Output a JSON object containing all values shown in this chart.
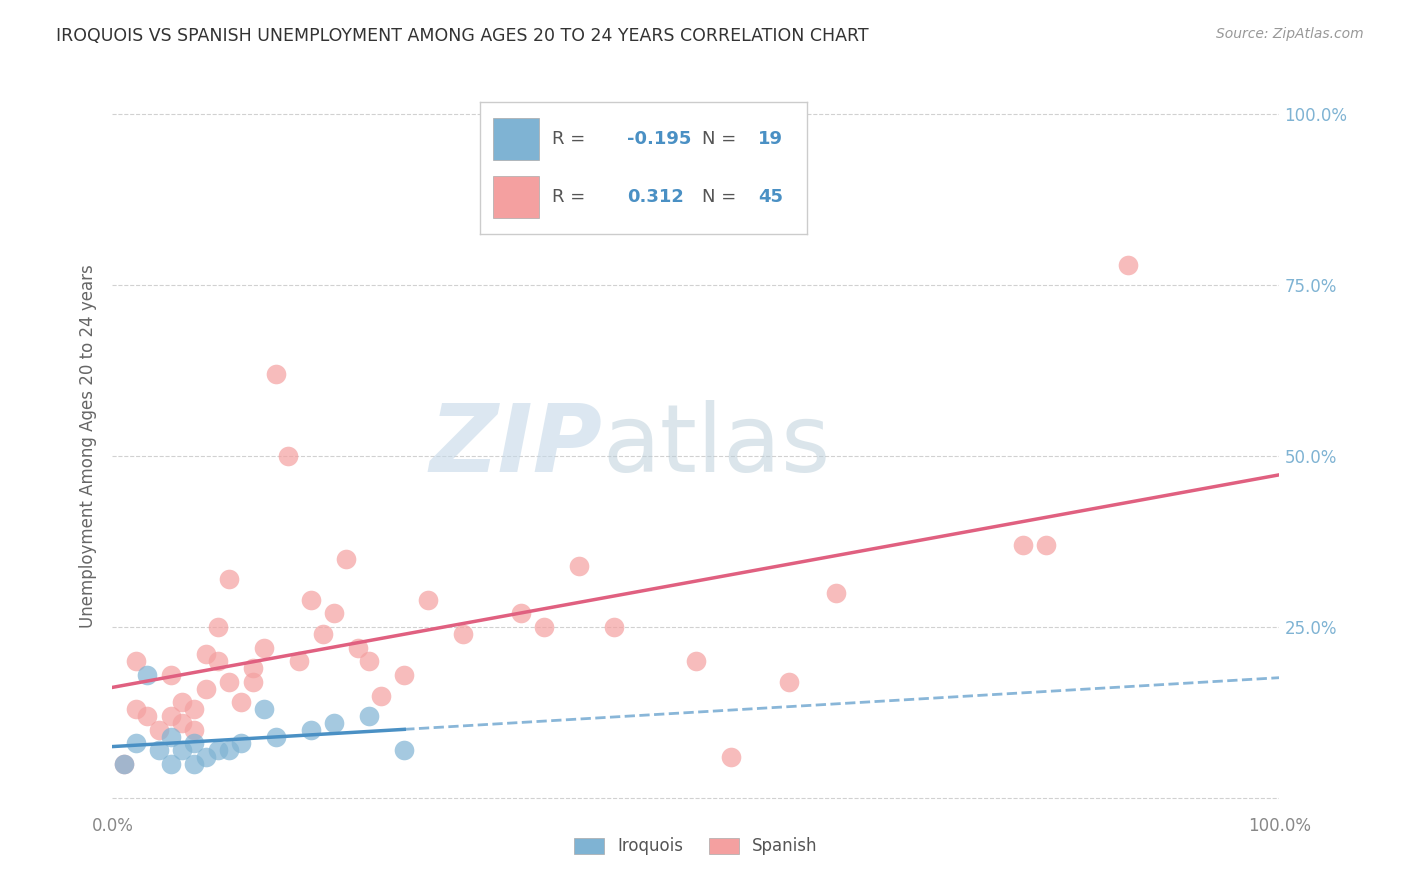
{
  "title": "IROQUOIS VS SPANISH UNEMPLOYMENT AMONG AGES 20 TO 24 YEARS CORRELATION CHART",
  "source": "Source: ZipAtlas.com",
  "ylabel": "Unemployment Among Ages 20 to 24 years",
  "xlim": [
    0,
    1.0
  ],
  "ylim": [
    -0.02,
    1.05
  ],
  "iroquois_R": -0.195,
  "iroquois_N": 19,
  "spanish_R": 0.312,
  "spanish_N": 45,
  "iroquois_color": "#7fb3d3",
  "spanish_color": "#f4a0a0",
  "iroquois_line_color": "#4a90c4",
  "spanish_line_color": "#e06080",
  "iroquois_scatter_x": [
    0.01,
    0.02,
    0.03,
    0.04,
    0.05,
    0.05,
    0.06,
    0.07,
    0.07,
    0.08,
    0.09,
    0.1,
    0.11,
    0.13,
    0.14,
    0.17,
    0.19,
    0.22,
    0.25
  ],
  "iroquois_scatter_y": [
    0.05,
    0.08,
    0.18,
    0.07,
    0.05,
    0.09,
    0.07,
    0.05,
    0.08,
    0.06,
    0.07,
    0.07,
    0.08,
    0.13,
    0.09,
    0.1,
    0.11,
    0.12,
    0.07
  ],
  "spanish_scatter_x": [
    0.01,
    0.02,
    0.02,
    0.03,
    0.04,
    0.05,
    0.05,
    0.06,
    0.06,
    0.07,
    0.07,
    0.08,
    0.08,
    0.09,
    0.09,
    0.1,
    0.1,
    0.11,
    0.12,
    0.12,
    0.13,
    0.14,
    0.15,
    0.16,
    0.17,
    0.18,
    0.19,
    0.2,
    0.21,
    0.22,
    0.23,
    0.25,
    0.27,
    0.3,
    0.35,
    0.37,
    0.4,
    0.43,
    0.5,
    0.53,
    0.58,
    0.62,
    0.78,
    0.8,
    0.87
  ],
  "spanish_scatter_y": [
    0.05,
    0.13,
    0.2,
    0.12,
    0.1,
    0.12,
    0.18,
    0.11,
    0.14,
    0.1,
    0.13,
    0.16,
    0.21,
    0.2,
    0.25,
    0.17,
    0.32,
    0.14,
    0.19,
    0.17,
    0.22,
    0.62,
    0.5,
    0.2,
    0.29,
    0.24,
    0.27,
    0.35,
    0.22,
    0.2,
    0.15,
    0.18,
    0.29,
    0.24,
    0.27,
    0.25,
    0.34,
    0.25,
    0.2,
    0.06,
    0.17,
    0.3,
    0.37,
    0.37,
    0.78
  ],
  "watermark_zip": "ZIP",
  "watermark_atlas": "atlas",
  "background_color": "#ffffff",
  "grid_color": "#cccccc",
  "tick_color": "#7fb3d3",
  "label_color": "#666666"
}
